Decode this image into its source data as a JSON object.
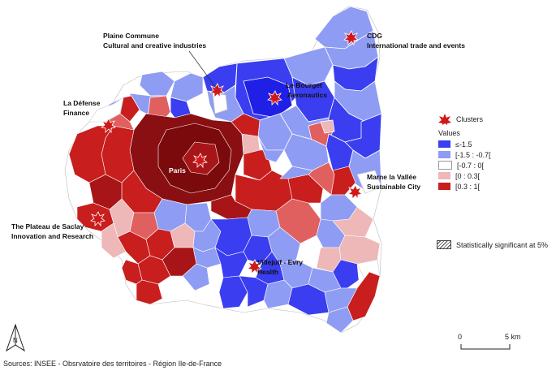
{
  "legend": {
    "clusters_label": "Clusters",
    "values_title": "Values",
    "classes": [
      {
        "label": "≤-1.5",
        "color": "#3a3ef0"
      },
      {
        "label": "[-1.5 : -0.7[",
        "color": "#8f9cf3"
      },
      {
        "label": "[-0.7 : 0[",
        "color": "#ffffff"
      },
      {
        "label": "[0 : 0.3[",
        "color": "#eeb8b8"
      },
      {
        "label": "[0.3 : 1[",
        "color": "#c81e1e"
      }
    ],
    "significance": "Statistically significant at 5%"
  },
  "clusters": [
    {
      "id": "plaine-commune",
      "line1": "Plaine Commune",
      "line2": "Cultural and creative industries"
    },
    {
      "id": "cdg",
      "line1": "CDG",
      "line2": "International trade and events"
    },
    {
      "id": "le-bourget",
      "line1": "Le Bourget",
      "line2": "Aeronautics"
    },
    {
      "id": "la-defense",
      "line1": "La Défense",
      "line2": "Finance"
    },
    {
      "id": "paris",
      "line1": "Paris",
      "line2": ""
    },
    {
      "id": "marne-la-vallee",
      "line1": "Marne la Vallée",
      "line2": "Sustainable City"
    },
    {
      "id": "saclay",
      "line1": "The Plateau de Saclay",
      "line2": "Innovation and Research"
    },
    {
      "id": "villejuif",
      "line1": "Villejuif - Evry",
      "line2": "Health"
    }
  ],
  "scale": {
    "start": "0",
    "end": "5 km"
  },
  "sources": "Sources: INSEE - Obsrvatoire des territoires - Région Ile-de-France",
  "north_label": "N",
  "colors": {
    "dark_red": "#8a0f12",
    "red": "#c81e1e",
    "light_red": "#e06060",
    "pink": "#eeb8b8",
    "light_blue": "#8f9cf3",
    "blue": "#3a3ef0",
    "dark_blue": "#1f1fe6",
    "star": "#d01818"
  }
}
